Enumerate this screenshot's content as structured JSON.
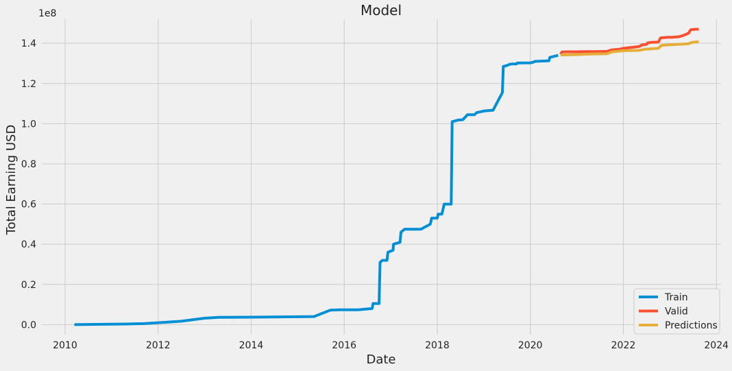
{
  "chart_data": {
    "type": "line",
    "title": "Model",
    "xlabel": "Date",
    "ylabel": "Total Earning USD",
    "y_multiplier_label": "1e8",
    "xlim": [
      2009.5,
      2024.1
    ],
    "ylim": [
      -0.05,
      1.52
    ],
    "x_ticks": [
      2010,
      2012,
      2014,
      2016,
      2018,
      2020,
      2022,
      2024
    ],
    "x_tick_labels": [
      "2010",
      "2012",
      "2014",
      "2016",
      "2018",
      "2020",
      "2022",
      "2024"
    ],
    "y_ticks": [
      0.0,
      0.2,
      0.4,
      0.6,
      0.8,
      1.0,
      1.2,
      1.4
    ],
    "y_tick_labels": [
      "0.0",
      "0.2",
      "0.4",
      "0.6",
      "0.8",
      "1.0",
      "1.2",
      "1.4"
    ],
    "grid": true,
    "legend_position": "bottom-right",
    "series": [
      {
        "name": "Train",
        "color": "#008fd5",
        "points": [
          [
            2010.2,
            0.0
          ],
          [
            2011.3,
            0.003
          ],
          [
            2011.7,
            0.005
          ],
          [
            2012.2,
            0.012
          ],
          [
            2012.5,
            0.017
          ],
          [
            2013.0,
            0.032
          ],
          [
            2013.3,
            0.036
          ],
          [
            2014.0,
            0.037
          ],
          [
            2015.0,
            0.039
          ],
          [
            2015.35,
            0.04
          ],
          [
            2015.7,
            0.072
          ],
          [
            2015.9,
            0.074
          ],
          [
            2016.3,
            0.074
          ],
          [
            2016.6,
            0.08
          ],
          [
            2016.62,
            0.105
          ],
          [
            2016.75,
            0.105
          ],
          [
            2016.77,
            0.31
          ],
          [
            2016.82,
            0.32
          ],
          [
            2016.92,
            0.32
          ],
          [
            2016.94,
            0.36
          ],
          [
            2017.05,
            0.37
          ],
          [
            2017.06,
            0.4
          ],
          [
            2017.2,
            0.41
          ],
          [
            2017.22,
            0.46
          ],
          [
            2017.3,
            0.475
          ],
          [
            2017.65,
            0.475
          ],
          [
            2017.85,
            0.5
          ],
          [
            2017.88,
            0.53
          ],
          [
            2018.0,
            0.53
          ],
          [
            2018.02,
            0.55
          ],
          [
            2018.1,
            0.55
          ],
          [
            2018.15,
            0.6
          ],
          [
            2018.3,
            0.6
          ],
          [
            2018.32,
            1.01
          ],
          [
            2018.45,
            1.018
          ],
          [
            2018.55,
            1.02
          ],
          [
            2018.65,
            1.045
          ],
          [
            2018.8,
            1.045
          ],
          [
            2018.85,
            1.055
          ],
          [
            2019.0,
            1.063
          ],
          [
            2019.1,
            1.065
          ],
          [
            2019.2,
            1.067
          ],
          [
            2019.4,
            1.155
          ],
          [
            2019.42,
            1.285
          ],
          [
            2019.5,
            1.29
          ],
          [
            2019.55,
            1.295
          ],
          [
            2019.6,
            1.297
          ],
          [
            2019.7,
            1.297
          ],
          [
            2019.72,
            1.302
          ],
          [
            2020.0,
            1.303
          ],
          [
            2020.05,
            1.305
          ],
          [
            2020.1,
            1.31
          ],
          [
            2020.4,
            1.313
          ],
          [
            2020.42,
            1.33
          ],
          [
            2020.6,
            1.34
          ]
        ]
      },
      {
        "name": "Valid",
        "color": "#fc4f30",
        "points": [
          [
            2020.65,
            1.345
          ],
          [
            2020.68,
            1.357
          ],
          [
            2020.8,
            1.358
          ],
          [
            2021.0,
            1.358
          ],
          [
            2021.2,
            1.359
          ],
          [
            2021.4,
            1.359
          ],
          [
            2021.65,
            1.36
          ],
          [
            2021.75,
            1.367
          ],
          [
            2021.9,
            1.37
          ],
          [
            2022.0,
            1.375
          ],
          [
            2022.2,
            1.38
          ],
          [
            2022.35,
            1.385
          ],
          [
            2022.4,
            1.392
          ],
          [
            2022.5,
            1.395
          ],
          [
            2022.52,
            1.402
          ],
          [
            2022.6,
            1.405
          ],
          [
            2022.75,
            1.406
          ],
          [
            2022.8,
            1.427
          ],
          [
            2022.95,
            1.43
          ],
          [
            2023.05,
            1.43
          ],
          [
            2023.2,
            1.433
          ],
          [
            2023.3,
            1.44
          ],
          [
            2023.4,
            1.45
          ],
          [
            2023.45,
            1.468
          ],
          [
            2023.55,
            1.47
          ],
          [
            2023.62,
            1.47
          ]
        ]
      },
      {
        "name": "Predictions",
        "color": "#e5ae38",
        "points": [
          [
            2020.65,
            1.342
          ],
          [
            2021.0,
            1.344
          ],
          [
            2021.3,
            1.347
          ],
          [
            2021.65,
            1.348
          ],
          [
            2021.75,
            1.357
          ],
          [
            2022.0,
            1.363
          ],
          [
            2022.35,
            1.365
          ],
          [
            2022.45,
            1.37
          ],
          [
            2022.75,
            1.375
          ],
          [
            2022.82,
            1.39
          ],
          [
            2023.0,
            1.393
          ],
          [
            2023.2,
            1.395
          ],
          [
            2023.4,
            1.398
          ],
          [
            2023.48,
            1.405
          ],
          [
            2023.62,
            1.408
          ]
        ]
      }
    ]
  }
}
